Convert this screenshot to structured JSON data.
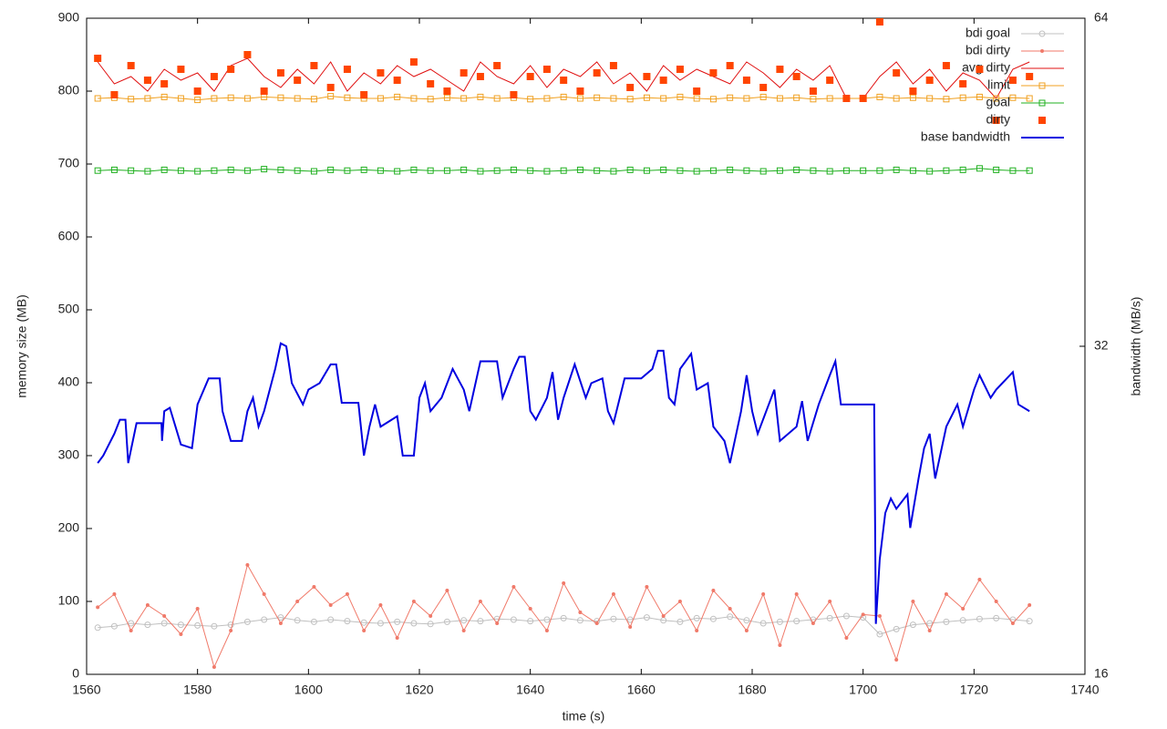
{
  "chart_data": {
    "type": "line",
    "xlabel": "time (s)",
    "ylabel": "memory size (MB)",
    "y2label": "bandwidth (MB/s)",
    "xlim": [
      1560,
      1740
    ],
    "xticks": [
      1560,
      1580,
      1600,
      1620,
      1640,
      1660,
      1680,
      1700,
      1720,
      1740
    ],
    "ylim": [
      0,
      900
    ],
    "yticks": [
      0,
      100,
      200,
      300,
      400,
      500,
      600,
      700,
      800,
      900
    ],
    "y2lim": [
      16,
      64
    ],
    "y2ticks": [
      16,
      32,
      64
    ],
    "y2log": true,
    "legend": "top-right",
    "x": [
      1562,
      1565,
      1568,
      1571,
      1574,
      1577,
      1580,
      1583,
      1586,
      1589,
      1592,
      1595,
      1598,
      1601,
      1604,
      1607,
      1610,
      1613,
      1616,
      1619,
      1622,
      1625,
      1628,
      1631,
      1634,
      1637,
      1640,
      1643,
      1646,
      1649,
      1652,
      1655,
      1658,
      1661,
      1664,
      1667,
      1670,
      1673,
      1676,
      1679,
      1682,
      1685,
      1688,
      1691,
      1694,
      1697,
      1700,
      1703,
      1706,
      1709,
      1712,
      1715,
      1718,
      1721,
      1724,
      1727,
      1730
    ],
    "series": [
      {
        "name": "bdi goal",
        "color": "#c0c0c0",
        "marker": "circle",
        "line": true,
        "values": [
          64,
          66,
          70,
          68,
          70,
          68,
          67,
          66,
          68,
          72,
          75,
          78,
          74,
          72,
          75,
          73,
          71,
          70,
          72,
          70,
          69,
          72,
          74,
          73,
          76,
          75,
          73,
          75,
          77,
          74,
          73,
          76,
          75,
          78,
          74,
          72,
          77,
          76,
          79,
          74,
          70,
          72,
          73,
          75,
          77,
          80,
          78,
          55,
          62,
          68,
          70,
          72,
          74,
          76,
          77,
          75,
          73
        ]
      },
      {
        "name": "bdi dirty",
        "color": "#f07a6a",
        "marker": "dot",
        "line": true,
        "values": [
          92,
          110,
          60,
          95,
          80,
          55,
          90,
          10,
          60,
          150,
          110,
          70,
          100,
          120,
          95,
          110,
          60,
          95,
          50,
          100,
          80,
          115,
          60,
          100,
          70,
          120,
          90,
          60,
          125,
          85,
          70,
          110,
          65,
          120,
          80,
          100,
          60,
          115,
          90,
          60,
          110,
          40,
          110,
          70,
          100,
          50,
          82,
          80,
          20,
          100,
          60,
          110,
          90,
          130,
          100,
          70,
          95
        ]
      },
      {
        "name": "avg dirty",
        "color": "#e01010",
        "marker": "none",
        "line": true,
        "values": [
          840,
          810,
          820,
          800,
          830,
          815,
          825,
          800,
          835,
          845,
          820,
          805,
          830,
          810,
          840,
          800,
          825,
          810,
          835,
          820,
          830,
          815,
          800,
          840,
          820,
          810,
          835,
          805,
          830,
          820,
          840,
          810,
          825,
          800,
          835,
          815,
          830,
          820,
          810,
          840,
          825,
          805,
          830,
          815,
          835,
          790,
          790,
          820,
          840,
          810,
          830,
          800,
          825,
          815,
          790,
          830,
          840
        ]
      },
      {
        "name": "limit",
        "color": "#f0a020",
        "marker": "square-open",
        "line": true,
        "values": [
          790,
          791,
          789,
          790,
          792,
          790,
          788,
          790,
          791,
          790,
          792,
          791,
          790,
          789,
          793,
          791,
          790,
          790,
          792,
          790,
          789,
          791,
          790,
          792,
          790,
          791,
          789,
          790,
          792,
          790,
          791,
          790,
          789,
          791,
          790,
          792,
          790,
          789,
          791,
          790,
          792,
          790,
          791,
          789,
          790,
          790,
          790,
          792,
          790,
          791,
          790,
          789,
          791,
          792,
          790,
          791,
          790
        ]
      },
      {
        "name": "goal",
        "color": "#20b020",
        "marker": "square-open",
        "line": true,
        "values": [
          691,
          692,
          691,
          690,
          692,
          691,
          690,
          691,
          692,
          691,
          693,
          692,
          691,
          690,
          692,
          691,
          692,
          691,
          690,
          692,
          691,
          691,
          692,
          690,
          691,
          692,
          691,
          690,
          691,
          692,
          691,
          690,
          692,
          691,
          692,
          691,
          690,
          691,
          692,
          691,
          690,
          691,
          692,
          691,
          690,
          691,
          691,
          691,
          692,
          691,
          690,
          691,
          692,
          694,
          692,
          691,
          691
        ]
      },
      {
        "name": "dirty",
        "color": "#ff4500",
        "marker": "square-filled",
        "line": false,
        "values": [
          845,
          795,
          835,
          815,
          810,
          830,
          800,
          820,
          830,
          850,
          800,
          825,
          815,
          835,
          805,
          830,
          795,
          825,
          815,
          840,
          810,
          800,
          825,
          820,
          835,
          795,
          820,
          830,
          815,
          800,
          825,
          835,
          805,
          820,
          815,
          830,
          800,
          825,
          835,
          815,
          805,
          830,
          820,
          800,
          815,
          790,
          790,
          895,
          825,
          800,
          815,
          835,
          810,
          830,
          760,
          815,
          820
        ]
      },
      {
        "name": "base bandwidth",
        "color": "#0000e0",
        "marker": "none",
        "line": true,
        "width": 2,
        "axis": "y2",
        "x": [
          1562,
          1563,
          1565,
          1566,
          1567,
          1567.5,
          1569,
          1573.5,
          1573.6,
          1574,
          1575,
          1577,
          1579,
          1580,
          1582,
          1584,
          1584.5,
          1586,
          1588,
          1589,
          1590,
          1591,
          1592,
          1594,
          1595,
          1596,
          1597,
          1599,
          1600,
          1602,
          1604,
          1605,
          1606,
          1609,
          1610,
          1611,
          1612,
          1613,
          1615,
          1616,
          1617,
          1619,
          1620,
          1621,
          1622,
          1624,
          1626,
          1628,
          1629,
          1631,
          1634,
          1635,
          1637,
          1638,
          1639,
          1640,
          1641,
          1643,
          1644,
          1645,
          1646,
          1648,
          1650,
          1651,
          1653,
          1654,
          1655,
          1657,
          1660,
          1662,
          1663,
          1664,
          1665,
          1666,
          1667,
          1669,
          1670,
          1672,
          1673,
          1675,
          1676,
          1678,
          1679,
          1680,
          1681,
          1684,
          1685,
          1688,
          1689,
          1690,
          1692,
          1694,
          1695,
          1696,
          1702,
          1702.3,
          1703,
          1704,
          1705,
          1706,
          1708,
          1708.5,
          1710,
          1711,
          1712,
          1713,
          1715,
          1717,
          1718,
          1720,
          1721,
          1723,
          1724,
          1727,
          1728,
          1730
        ],
        "values": [
          25.0,
          25.4,
          26.6,
          27.4,
          27.4,
          25.0,
          27.2,
          27.2,
          26.2,
          27.9,
          28.1,
          26.0,
          25.8,
          28.3,
          29.9,
          29.9,
          27.9,
          26.2,
          26.2,
          27.9,
          28.7,
          27.0,
          27.9,
          30.5,
          32.2,
          32.0,
          29.6,
          28.3,
          29.2,
          29.6,
          30.8,
          30.8,
          28.4,
          28.4,
          25.4,
          27.0,
          28.3,
          27.0,
          27.4,
          27.6,
          25.4,
          25.4,
          28.7,
          29.6,
          27.9,
          28.7,
          30.5,
          29.2,
          27.9,
          31.0,
          31.0,
          28.7,
          30.5,
          31.3,
          31.3,
          27.9,
          27.4,
          28.7,
          30.3,
          27.4,
          28.7,
          30.8,
          28.7,
          29.6,
          29.9,
          27.9,
          27.2,
          29.9,
          29.9,
          30.5,
          31.7,
          31.7,
          28.7,
          28.3,
          30.5,
          31.5,
          29.2,
          29.6,
          27.0,
          26.2,
          25.0,
          27.9,
          30.1,
          27.9,
          26.6,
          29.2,
          26.2,
          27.0,
          28.5,
          26.2,
          28.3,
          30.1,
          31.0,
          28.3,
          28.3,
          17.8,
          20.4,
          22.5,
          23.2,
          22.7,
          23.4,
          21.8,
          24.2,
          25.8,
          26.6,
          24.2,
          27.0,
          28.3,
          27.0,
          29.2,
          30.1,
          28.7,
          29.2,
          30.3,
          28.3,
          27.9
        ]
      }
    ]
  }
}
